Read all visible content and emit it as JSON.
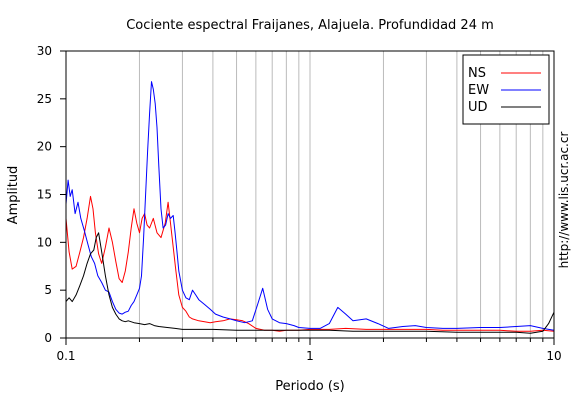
{
  "chart_data": {
    "type": "line",
    "title": "Cociente espectral Fraijanes, Alajuela. Profundidad 24 m",
    "xlabel": "Periodo (s)",
    "ylabel": "Amplitud",
    "xscale": "log",
    "xlim": [
      0.1,
      10
    ],
    "ylim": [
      0,
      30
    ],
    "xticks": [
      {
        "value": 0.1,
        "label": "0.1"
      },
      {
        "value": 1,
        "label": "1"
      },
      {
        "value": 10,
        "label": "10"
      }
    ],
    "yticks": [
      0,
      5,
      10,
      15,
      20,
      25,
      30
    ],
    "grid": "vertical-minor",
    "legend_position": "top-right",
    "credit": "http://www.lis.ucr.ac.cr",
    "series": [
      {
        "name": "NS",
        "color": "#ff0000",
        "points": [
          [
            0.1,
            12.5
          ],
          [
            0.103,
            9.0
          ],
          [
            0.106,
            7.2
          ],
          [
            0.11,
            7.5
          ],
          [
            0.114,
            9.0
          ],
          [
            0.118,
            10.5
          ],
          [
            0.122,
            12.5
          ],
          [
            0.126,
            14.8
          ],
          [
            0.129,
            13.5
          ],
          [
            0.132,
            11.0
          ],
          [
            0.136,
            8.8
          ],
          [
            0.14,
            7.8
          ],
          [
            0.145,
            9.5
          ],
          [
            0.15,
            11.5
          ],
          [
            0.155,
            10.0
          ],
          [
            0.16,
            8.0
          ],
          [
            0.165,
            6.2
          ],
          [
            0.17,
            5.8
          ],
          [
            0.175,
            7.0
          ],
          [
            0.18,
            9.0
          ],
          [
            0.185,
            11.5
          ],
          [
            0.19,
            13.5
          ],
          [
            0.195,
            12.0
          ],
          [
            0.2,
            11.0
          ],
          [
            0.205,
            12.5
          ],
          [
            0.21,
            13.0
          ],
          [
            0.215,
            11.8
          ],
          [
            0.22,
            11.5
          ],
          [
            0.228,
            12.5
          ],
          [
            0.236,
            11.0
          ],
          [
            0.245,
            10.5
          ],
          [
            0.255,
            12.0
          ],
          [
            0.262,
            14.2
          ],
          [
            0.268,
            12.0
          ],
          [
            0.275,
            9.5
          ],
          [
            0.282,
            7.0
          ],
          [
            0.29,
            4.5
          ],
          [
            0.3,
            3.2
          ],
          [
            0.31,
            2.8
          ],
          [
            0.32,
            2.2
          ],
          [
            0.33,
            2.0
          ],
          [
            0.35,
            1.8
          ],
          [
            0.37,
            1.7
          ],
          [
            0.39,
            1.6
          ],
          [
            0.41,
            1.7
          ],
          [
            0.44,
            1.8
          ],
          [
            0.47,
            2.0
          ],
          [
            0.5,
            1.9
          ],
          [
            0.53,
            1.8
          ],
          [
            0.56,
            1.5
          ],
          [
            0.6,
            1.0
          ],
          [
            0.65,
            0.8
          ],
          [
            0.7,
            0.8
          ],
          [
            0.75,
            0.7
          ],
          [
            0.8,
            0.8
          ],
          [
            0.9,
            0.8
          ],
          [
            1.0,
            0.9
          ],
          [
            1.2,
            0.9
          ],
          [
            1.4,
            1.0
          ],
          [
            1.7,
            0.9
          ],
          [
            2.0,
            0.9
          ],
          [
            2.5,
            0.9
          ],
          [
            3.0,
            0.9
          ],
          [
            3.5,
            0.8
          ],
          [
            4.0,
            0.8
          ],
          [
            5.0,
            0.8
          ],
          [
            6.0,
            0.8
          ],
          [
            7.0,
            0.7
          ],
          [
            8.0,
            0.7
          ],
          [
            9.0,
            0.8
          ],
          [
            10.0,
            0.7
          ]
        ]
      },
      {
        "name": "EW",
        "color": "#0000ff",
        "points": [
          [
            0.1,
            14.0
          ],
          [
            0.102,
            16.5
          ],
          [
            0.104,
            14.8
          ],
          [
            0.106,
            15.5
          ],
          [
            0.109,
            13.0
          ],
          [
            0.112,
            14.2
          ],
          [
            0.115,
            12.5
          ],
          [
            0.119,
            11.2
          ],
          [
            0.123,
            9.8
          ],
          [
            0.127,
            8.5
          ],
          [
            0.131,
            7.8
          ],
          [
            0.135,
            6.5
          ],
          [
            0.14,
            5.8
          ],
          [
            0.145,
            5.0
          ],
          [
            0.15,
            4.8
          ],
          [
            0.155,
            3.8
          ],
          [
            0.16,
            3.0
          ],
          [
            0.165,
            2.6
          ],
          [
            0.17,
            2.5
          ],
          [
            0.175,
            2.7
          ],
          [
            0.18,
            2.8
          ],
          [
            0.185,
            3.4
          ],
          [
            0.19,
            3.8
          ],
          [
            0.195,
            4.5
          ],
          [
            0.2,
            5.2
          ],
          [
            0.204,
            6.5
          ],
          [
            0.208,
            10.5
          ],
          [
            0.212,
            15.0
          ],
          [
            0.216,
            19.5
          ],
          [
            0.22,
            23.5
          ],
          [
            0.224,
            26.8
          ],
          [
            0.228,
            26.0
          ],
          [
            0.232,
            24.5
          ],
          [
            0.236,
            22.0
          ],
          [
            0.24,
            18.0
          ],
          [
            0.245,
            13.5
          ],
          [
            0.25,
            11.5
          ],
          [
            0.256,
            11.8
          ],
          [
            0.262,
            13.0
          ],
          [
            0.268,
            12.5
          ],
          [
            0.275,
            12.8
          ],
          [
            0.28,
            11.0
          ],
          [
            0.285,
            9.0
          ],
          [
            0.29,
            7.0
          ],
          [
            0.3,
            5.0
          ],
          [
            0.31,
            4.2
          ],
          [
            0.32,
            4.0
          ],
          [
            0.33,
            5.0
          ],
          [
            0.34,
            4.5
          ],
          [
            0.35,
            4.0
          ],
          [
            0.37,
            3.5
          ],
          [
            0.39,
            3.0
          ],
          [
            0.41,
            2.5
          ],
          [
            0.44,
            2.2
          ],
          [
            0.47,
            2.0
          ],
          [
            0.5,
            1.8
          ],
          [
            0.54,
            1.6
          ],
          [
            0.58,
            1.8
          ],
          [
            0.61,
            3.5
          ],
          [
            0.64,
            5.2
          ],
          [
            0.67,
            3.0
          ],
          [
            0.7,
            2.0
          ],
          [
            0.75,
            1.6
          ],
          [
            0.8,
            1.5
          ],
          [
            0.86,
            1.3
          ],
          [
            0.9,
            1.1
          ],
          [
            1.0,
            1.0
          ],
          [
            1.1,
            1.0
          ],
          [
            1.2,
            1.5
          ],
          [
            1.3,
            3.2
          ],
          [
            1.4,
            2.5
          ],
          [
            1.5,
            1.8
          ],
          [
            1.7,
            2.0
          ],
          [
            1.9,
            1.5
          ],
          [
            2.1,
            1.0
          ],
          [
            2.4,
            1.2
          ],
          [
            2.7,
            1.3
          ],
          [
            3.0,
            1.1
          ],
          [
            3.5,
            1.0
          ],
          [
            4.0,
            1.0
          ],
          [
            5.0,
            1.1
          ],
          [
            6.0,
            1.1
          ],
          [
            7.0,
            1.2
          ],
          [
            8.0,
            1.3
          ],
          [
            9.0,
            1.0
          ],
          [
            10.0,
            0.8
          ]
        ]
      },
      {
        "name": "UD",
        "color": "#000000",
        "points": [
          [
            0.1,
            3.8
          ],
          [
            0.103,
            4.2
          ],
          [
            0.106,
            3.8
          ],
          [
            0.11,
            4.5
          ],
          [
            0.114,
            5.5
          ],
          [
            0.118,
            6.5
          ],
          [
            0.122,
            7.8
          ],
          [
            0.126,
            8.8
          ],
          [
            0.13,
            9.2
          ],
          [
            0.133,
            10.5
          ],
          [
            0.136,
            11.0
          ],
          [
            0.14,
            9.0
          ],
          [
            0.145,
            6.5
          ],
          [
            0.15,
            4.5
          ],
          [
            0.155,
            3.2
          ],
          [
            0.16,
            2.5
          ],
          [
            0.165,
            2.0
          ],
          [
            0.17,
            1.8
          ],
          [
            0.175,
            1.7
          ],
          [
            0.18,
            1.8
          ],
          [
            0.19,
            1.6
          ],
          [
            0.2,
            1.5
          ],
          [
            0.21,
            1.4
          ],
          [
            0.22,
            1.5
          ],
          [
            0.23,
            1.3
          ],
          [
            0.24,
            1.2
          ],
          [
            0.26,
            1.1
          ],
          [
            0.28,
            1.0
          ],
          [
            0.3,
            0.9
          ],
          [
            0.35,
            0.9
          ],
          [
            0.4,
            0.9
          ],
          [
            0.5,
            0.8
          ],
          [
            0.6,
            0.8
          ],
          [
            0.7,
            0.8
          ],
          [
            0.8,
            0.8
          ],
          [
            1.0,
            0.8
          ],
          [
            1.2,
            0.8
          ],
          [
            1.5,
            0.7
          ],
          [
            2.0,
            0.7
          ],
          [
            2.5,
            0.7
          ],
          [
            3.0,
            0.7
          ],
          [
            4.0,
            0.6
          ],
          [
            5.0,
            0.6
          ],
          [
            6.0,
            0.6
          ],
          [
            7.0,
            0.6
          ],
          [
            8.0,
            0.5
          ],
          [
            9.0,
            0.7
          ],
          [
            9.5,
            1.5
          ],
          [
            10.0,
            2.7
          ]
        ]
      }
    ]
  }
}
